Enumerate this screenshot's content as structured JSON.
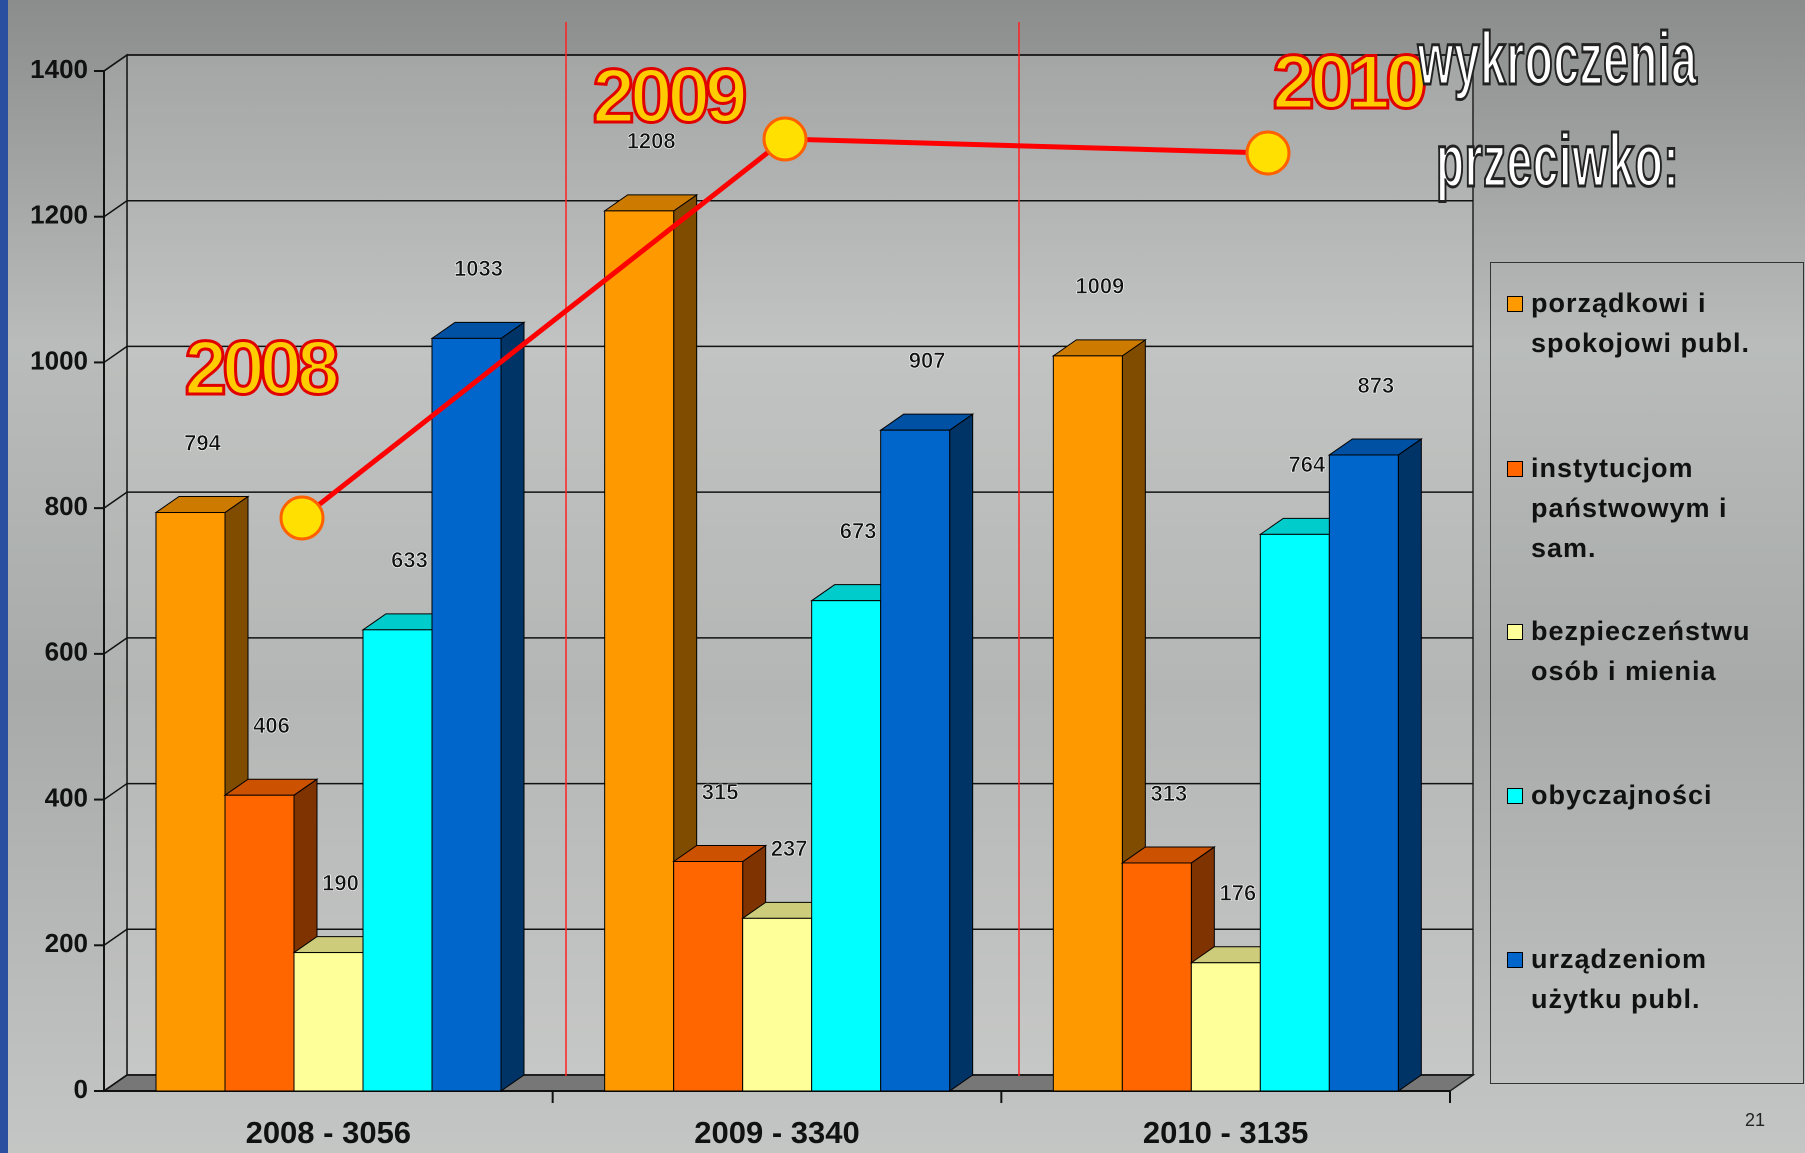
{
  "chart_data": {
    "type": "bar3d",
    "title": "wykroczenia przeciwko:",
    "categories": [
      "2008 - 3056",
      "2009 - 3340",
      "2010 - 3135"
    ],
    "series": [
      {
        "name": "porządkowi i spokojowi publ.",
        "color": "#ff9900",
        "values": [
          794,
          1208,
          1009
        ]
      },
      {
        "name": "instytucjom państwowym i sam.",
        "color": "#ff6600",
        "values": [
          406,
          315,
          313
        ]
      },
      {
        "name": "bezpieczeństwu osób i mienia",
        "color": "#ffff99",
        "values": [
          190,
          237,
          176
        ]
      },
      {
        "name": "obyczajności",
        "color": "#00ffff",
        "values": [
          633,
          673,
          764
        ]
      },
      {
        "name": "urządzeniom użytku publ.",
        "color": "#0066cc",
        "values": [
          1033,
          907,
          873
        ]
      }
    ],
    "ylim": [
      0,
      1400
    ],
    "yticks": [
      0,
      200,
      400,
      600,
      800,
      1000,
      1200,
      1400
    ],
    "grid": true,
    "legend": "right",
    "annotations": [
      "2008",
      "2009",
      "2010"
    ],
    "page_number": "21"
  }
}
